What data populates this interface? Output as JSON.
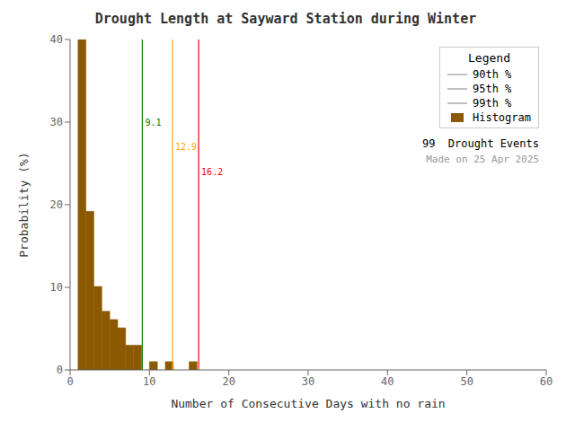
{
  "chart_data": {
    "type": "histogram",
    "title": "Drought Length at Sayward Station during Winter",
    "xlabel": "Number of Consecutive Days with no rain",
    "ylabel": "Probability (%)",
    "bins": [
      1,
      2,
      3,
      4,
      5,
      6,
      7,
      8,
      9,
      10,
      11,
      12,
      13,
      14,
      15,
      16,
      17,
      18,
      19,
      20
    ],
    "values": [
      40.0,
      19.2,
      10.1,
      7.1,
      6.1,
      5.1,
      3.0,
      3.0,
      0.0,
      1.0,
      0.0,
      1.0,
      0.0,
      0.0,
      1.0,
      0.0,
      0.0,
      0.0,
      0.0
    ],
    "color": "#8B5A00",
    "name": "Histogram",
    "xlim": [
      0,
      60
    ],
    "ylim": [
      0,
      40
    ],
    "xticks": [
      0,
      10,
      20,
      30,
      40,
      50,
      60
    ],
    "yticks": [
      0,
      10,
      20,
      30,
      40
    ],
    "lines": [
      {
        "name": "90th %",
        "x": 9.1,
        "label": "9.1",
        "label_y": 30.0,
        "color": "green",
        "legend_color": "#c0c0c0"
      },
      {
        "name": "95th %",
        "x": 12.9,
        "label": "12.9",
        "label_y": 27.0,
        "color": "orange",
        "legend_color": "#c0c0c0"
      },
      {
        "name": "99th %",
        "x": 16.2,
        "label": "16.2",
        "label_y": 24.0,
        "color": "red",
        "legend_color": "#c0c0c0"
      }
    ],
    "legend": "upper right",
    "legend_title": "Legend",
    "annotations": [
      "99  Drought Events",
      "Made on 25 Apr 2025"
    ]
  }
}
